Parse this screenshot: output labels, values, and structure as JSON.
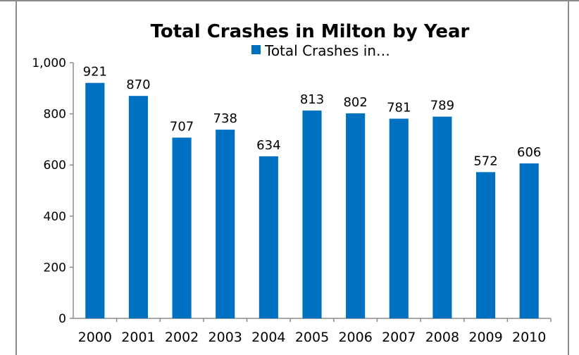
{
  "chart_data": {
    "type": "bar",
    "title": "Total Crashes in Milton by Year",
    "legend": {
      "label": "Total Crashes in…",
      "position": "top"
    },
    "categories": [
      "2000",
      "2001",
      "2002",
      "2003",
      "2004",
      "2005",
      "2006",
      "2007",
      "2008",
      "2009",
      "2010"
    ],
    "series": [
      {
        "name": "Total Crashes in…",
        "values": [
          921,
          870,
          707,
          738,
          634,
          813,
          802,
          781,
          789,
          572,
          606
        ],
        "color": "#0070C0"
      }
    ],
    "data_labels": [
      "921",
      "870",
      "707",
      "738",
      "634",
      "813",
      "802",
      "781",
      "789",
      "572",
      "606"
    ],
    "y_ticks": [
      "0",
      "200",
      "400",
      "600",
      "800",
      "1,000"
    ],
    "ylim": [
      0,
      1000
    ],
    "xlabel": "",
    "ylabel": "",
    "grid": false
  }
}
